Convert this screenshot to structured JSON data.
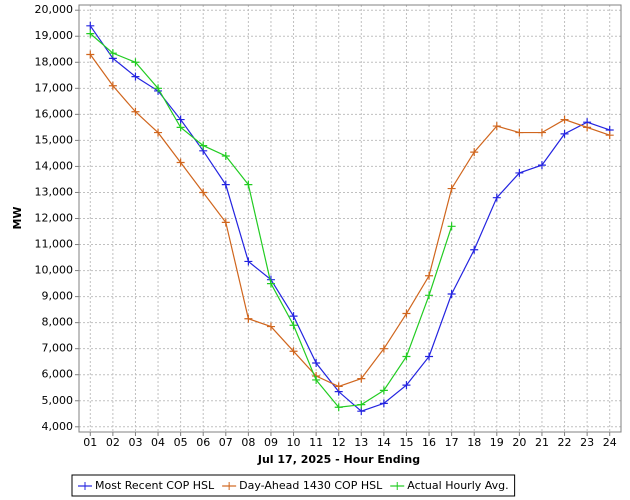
{
  "chart_data": {
    "type": "line",
    "x_label": "Jul 17, 2025 - Hour Ending",
    "y_label": "MW",
    "categories": [
      "01",
      "02",
      "03",
      "04",
      "05",
      "06",
      "07",
      "08",
      "09",
      "10",
      "11",
      "12",
      "13",
      "14",
      "15",
      "16",
      "17",
      "18",
      "19",
      "20",
      "21",
      "22",
      "23",
      "24"
    ],
    "series": [
      {
        "name": "Most Recent COP HSL",
        "color": "#2424e0",
        "values": [
          19400,
          18150,
          17450,
          16900,
          15800,
          14600,
          13300,
          10350,
          9650,
          8250,
          6450,
          5350,
          4600,
          4900,
          5600,
          6700,
          9100,
          10800,
          12800,
          13750,
          14050,
          15250,
          15700,
          15400
        ]
      },
      {
        "name": "Day-Ahead 1430 COP HSL",
        "color": "#d0661e",
        "values": [
          18300,
          17100,
          16100,
          15300,
          14150,
          13000,
          11850,
          8150,
          7850,
          6900,
          5950,
          5550,
          5850,
          7000,
          8350,
          9800,
          13150,
          14550,
          15550,
          15300,
          15300,
          15800,
          15500,
          15200
        ]
      },
      {
        "name": "Actual Hourly Avg.",
        "color": "#22cc22",
        "values": [
          19100,
          18350,
          18000,
          17000,
          15500,
          14800,
          14400,
          13300,
          9500,
          7900,
          5800,
          4750,
          4850,
          5400,
          6700,
          9050,
          11700,
          null,
          null,
          null,
          null,
          null,
          null,
          null
        ]
      }
    ],
    "ylim": [
      3800,
      20200
    ],
    "yticks": [
      {
        "value": 4000,
        "label": "4,000"
      },
      {
        "value": 5000,
        "label": "5,000"
      },
      {
        "value": 6000,
        "label": "6,000"
      },
      {
        "value": 7000,
        "label": "7,000"
      },
      {
        "value": 8000,
        "label": "8,000"
      },
      {
        "value": 9000,
        "label": "9,000"
      },
      {
        "value": 10000,
        "label": "10,000"
      },
      {
        "value": 11000,
        "label": "11,000"
      },
      {
        "value": 12000,
        "label": "12,000"
      },
      {
        "value": 13000,
        "label": "13,000"
      },
      {
        "value": 14000,
        "label": "14,000"
      },
      {
        "value": 15000,
        "label": "15,000"
      },
      {
        "value": 16000,
        "label": "16,000"
      },
      {
        "value": 17000,
        "label": "17,000"
      },
      {
        "value": 18000,
        "label": "18,000"
      },
      {
        "value": 19000,
        "label": "19,000"
      },
      {
        "value": 20000,
        "label": "20,000"
      }
    ],
    "grid": true,
    "legend": "bottom"
  }
}
